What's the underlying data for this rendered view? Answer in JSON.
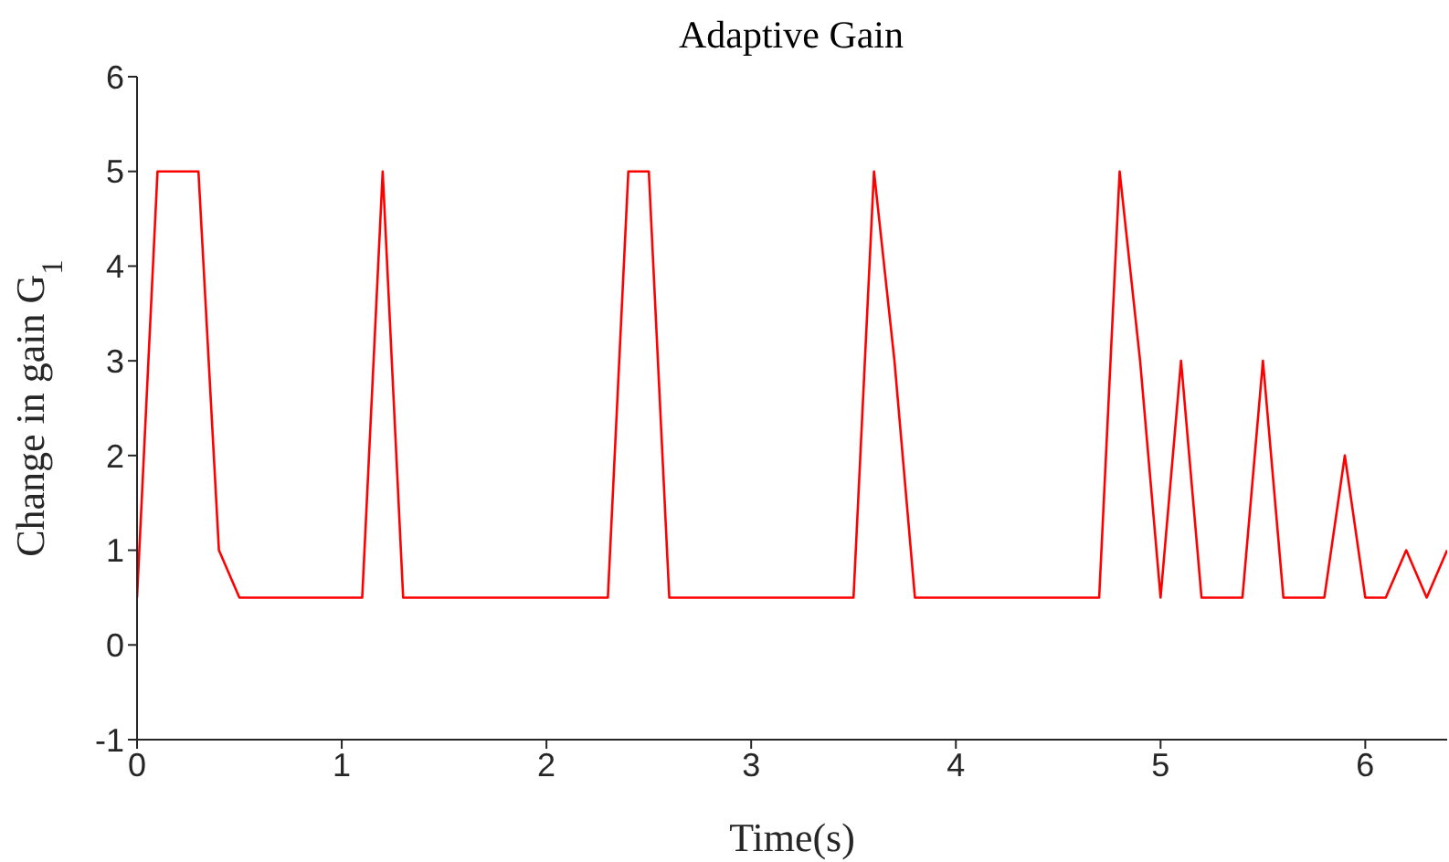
{
  "chart_data": {
    "type": "line",
    "title": "Adaptive Gain",
    "xlabel": "Time(s)",
    "ylabel": "Change in gain G$_{1}$",
    "x": [
      0,
      0.1,
      0.2,
      0.3,
      0.4,
      0.5,
      0.6,
      0.7,
      0.8,
      0.9,
      1.0,
      1.1,
      1.2,
      1.3,
      1.4,
      1.5,
      1.6,
      1.7,
      1.8,
      1.9,
      2.0,
      2.1,
      2.2,
      2.3,
      2.4,
      2.5,
      2.6,
      2.7,
      2.8,
      2.9,
      3.0,
      3.1,
      3.2,
      3.3,
      3.4,
      3.5,
      3.6,
      3.7,
      3.8,
      3.9,
      4.0,
      4.1,
      4.2,
      4.3,
      4.4,
      4.5,
      4.6,
      4.7,
      4.8,
      4.9,
      5.0,
      5.1,
      5.2,
      5.3,
      5.4,
      5.5,
      5.6,
      5.7,
      5.8,
      5.9,
      6.0,
      6.1,
      6.2,
      6.3,
      6.4
    ],
    "series": [
      {
        "color": "#ff0000",
        "values": [
          0.5,
          5,
          5,
          5,
          1,
          0.5,
          0.5,
          0.5,
          0.5,
          0.5,
          0.5,
          0.5,
          5,
          0.5,
          0.5,
          0.5,
          0.5,
          0.5,
          0.5,
          0.5,
          0.5,
          0.5,
          0.5,
          0.5,
          5,
          5,
          0.5,
          0.5,
          0.5,
          0.5,
          0.5,
          0.5,
          0.5,
          0.5,
          0.5,
          0.5,
          5,
          3,
          0.5,
          0.5,
          0.5,
          0.5,
          0.5,
          0.5,
          0.5,
          0.5,
          0.5,
          0.5,
          5,
          3,
          0.5,
          3,
          0.5,
          0.5,
          0.5,
          3,
          0.5,
          0.5,
          0.5,
          2,
          0.5,
          0.5,
          1,
          0.5,
          1
        ]
      }
    ],
    "xlim": [
      0,
      6.4
    ],
    "xticks": [
      0,
      1,
      2,
      3,
      4,
      5,
      6
    ],
    "ylim": [
      -1,
      6
    ],
    "yticks": [
      -1,
      0,
      1,
      2,
      3,
      4,
      5,
      6
    ],
    "grid": false,
    "legend": false,
    "marker": "none",
    "line_style": "solid"
  }
}
